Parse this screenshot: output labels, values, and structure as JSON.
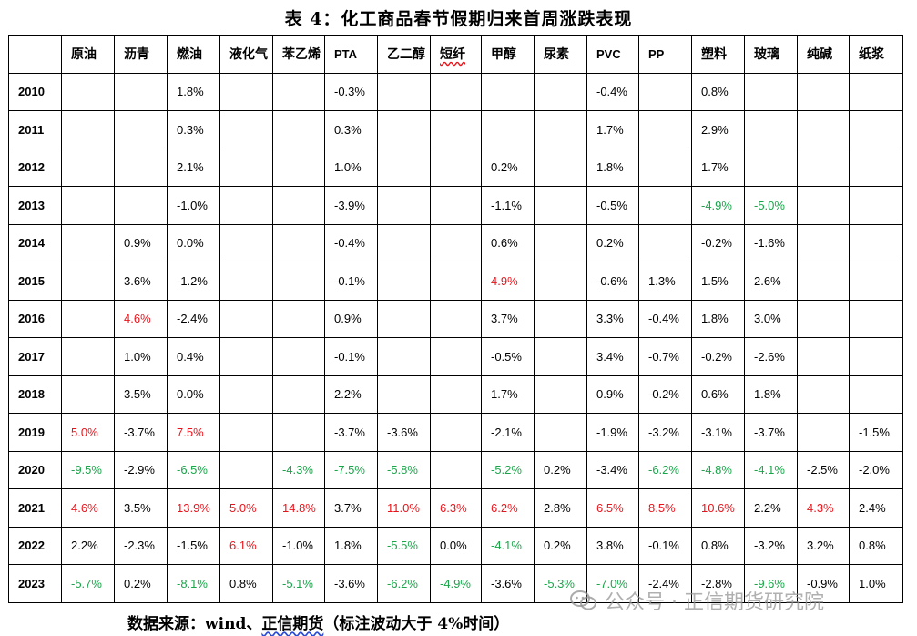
{
  "title": "表 4：化工商品春节假期归来首周涨跌表现",
  "colors": {
    "up": "#e8141b",
    "down": "#1aa54a",
    "text": "#000000"
  },
  "table": {
    "columns": [
      "",
      "原油",
      "沥青",
      "燃油",
      "液化气",
      "苯乙烯",
      "PTA",
      "乙二醇",
      "短纤",
      "甲醇",
      "尿素",
      "PVC",
      "PP",
      "塑料",
      "玻璃",
      "纯碱",
      "纸浆"
    ],
    "rows": [
      {
        "year": "2010",
        "cells": [
          {
            "v": "",
            "c": ""
          },
          {
            "v": "",
            "c": ""
          },
          {
            "v": "1.8%",
            "c": ""
          },
          {
            "v": "",
            "c": ""
          },
          {
            "v": "",
            "c": ""
          },
          {
            "v": "-0.3%",
            "c": ""
          },
          {
            "v": "",
            "c": ""
          },
          {
            "v": "",
            "c": ""
          },
          {
            "v": "",
            "c": ""
          },
          {
            "v": "",
            "c": ""
          },
          {
            "v": "-0.4%",
            "c": ""
          },
          {
            "v": "",
            "c": ""
          },
          {
            "v": "0.8%",
            "c": ""
          },
          {
            "v": "",
            "c": ""
          },
          {
            "v": "",
            "c": ""
          },
          {
            "v": "",
            "c": ""
          }
        ]
      },
      {
        "year": "2011",
        "cells": [
          {
            "v": "",
            "c": ""
          },
          {
            "v": "",
            "c": ""
          },
          {
            "v": "0.3%",
            "c": ""
          },
          {
            "v": "",
            "c": ""
          },
          {
            "v": "",
            "c": ""
          },
          {
            "v": "0.3%",
            "c": ""
          },
          {
            "v": "",
            "c": ""
          },
          {
            "v": "",
            "c": ""
          },
          {
            "v": "",
            "c": ""
          },
          {
            "v": "",
            "c": ""
          },
          {
            "v": "1.7%",
            "c": ""
          },
          {
            "v": "",
            "c": ""
          },
          {
            "v": "2.9%",
            "c": ""
          },
          {
            "v": "",
            "c": ""
          },
          {
            "v": "",
            "c": ""
          },
          {
            "v": "",
            "c": ""
          }
        ]
      },
      {
        "year": "2012",
        "cells": [
          {
            "v": "",
            "c": ""
          },
          {
            "v": "",
            "c": ""
          },
          {
            "v": "2.1%",
            "c": ""
          },
          {
            "v": "",
            "c": ""
          },
          {
            "v": "",
            "c": ""
          },
          {
            "v": "1.0%",
            "c": ""
          },
          {
            "v": "",
            "c": ""
          },
          {
            "v": "",
            "c": ""
          },
          {
            "v": "0.2%",
            "c": ""
          },
          {
            "v": "",
            "c": ""
          },
          {
            "v": "1.8%",
            "c": ""
          },
          {
            "v": "",
            "c": ""
          },
          {
            "v": "1.7%",
            "c": ""
          },
          {
            "v": "",
            "c": ""
          },
          {
            "v": "",
            "c": ""
          },
          {
            "v": "",
            "c": ""
          }
        ]
      },
      {
        "year": "2013",
        "cells": [
          {
            "v": "",
            "c": ""
          },
          {
            "v": "",
            "c": ""
          },
          {
            "v": "-1.0%",
            "c": ""
          },
          {
            "v": "",
            "c": ""
          },
          {
            "v": "",
            "c": ""
          },
          {
            "v": "-3.9%",
            "c": ""
          },
          {
            "v": "",
            "c": ""
          },
          {
            "v": "",
            "c": ""
          },
          {
            "v": "-1.1%",
            "c": ""
          },
          {
            "v": "",
            "c": ""
          },
          {
            "v": "-0.5%",
            "c": ""
          },
          {
            "v": "",
            "c": ""
          },
          {
            "v": "-4.9%",
            "c": "green"
          },
          {
            "v": "-5.0%",
            "c": "green"
          },
          {
            "v": "",
            "c": ""
          },
          {
            "v": "",
            "c": ""
          }
        ]
      },
      {
        "year": "2014",
        "cells": [
          {
            "v": "",
            "c": ""
          },
          {
            "v": "0.9%",
            "c": ""
          },
          {
            "v": "0.0%",
            "c": ""
          },
          {
            "v": "",
            "c": ""
          },
          {
            "v": "",
            "c": ""
          },
          {
            "v": "-0.4%",
            "c": ""
          },
          {
            "v": "",
            "c": ""
          },
          {
            "v": "",
            "c": ""
          },
          {
            "v": "0.6%",
            "c": ""
          },
          {
            "v": "",
            "c": ""
          },
          {
            "v": "0.2%",
            "c": ""
          },
          {
            "v": "",
            "c": ""
          },
          {
            "v": "-0.2%",
            "c": ""
          },
          {
            "v": "-1.6%",
            "c": ""
          },
          {
            "v": "",
            "c": ""
          },
          {
            "v": "",
            "c": ""
          }
        ]
      },
      {
        "year": "2015",
        "cells": [
          {
            "v": "",
            "c": ""
          },
          {
            "v": "3.6%",
            "c": ""
          },
          {
            "v": "-1.2%",
            "c": ""
          },
          {
            "v": "",
            "c": ""
          },
          {
            "v": "",
            "c": ""
          },
          {
            "v": "-0.1%",
            "c": ""
          },
          {
            "v": "",
            "c": ""
          },
          {
            "v": "",
            "c": ""
          },
          {
            "v": "4.9%",
            "c": "red"
          },
          {
            "v": "",
            "c": ""
          },
          {
            "v": "-0.6%",
            "c": ""
          },
          {
            "v": "1.3%",
            "c": ""
          },
          {
            "v": "1.5%",
            "c": ""
          },
          {
            "v": "2.6%",
            "c": ""
          },
          {
            "v": "",
            "c": ""
          },
          {
            "v": "",
            "c": ""
          }
        ]
      },
      {
        "year": "2016",
        "cells": [
          {
            "v": "",
            "c": ""
          },
          {
            "v": "4.6%",
            "c": "red"
          },
          {
            "v": "-2.4%",
            "c": ""
          },
          {
            "v": "",
            "c": ""
          },
          {
            "v": "",
            "c": ""
          },
          {
            "v": "0.9%",
            "c": ""
          },
          {
            "v": "",
            "c": ""
          },
          {
            "v": "",
            "c": ""
          },
          {
            "v": "3.7%",
            "c": ""
          },
          {
            "v": "",
            "c": ""
          },
          {
            "v": "3.3%",
            "c": ""
          },
          {
            "v": "-0.4%",
            "c": ""
          },
          {
            "v": "1.8%",
            "c": ""
          },
          {
            "v": "3.0%",
            "c": ""
          },
          {
            "v": "",
            "c": ""
          },
          {
            "v": "",
            "c": ""
          }
        ]
      },
      {
        "year": "2017",
        "cells": [
          {
            "v": "",
            "c": ""
          },
          {
            "v": "1.0%",
            "c": ""
          },
          {
            "v": "0.4%",
            "c": ""
          },
          {
            "v": "",
            "c": ""
          },
          {
            "v": "",
            "c": ""
          },
          {
            "v": "-0.1%",
            "c": ""
          },
          {
            "v": "",
            "c": ""
          },
          {
            "v": "",
            "c": ""
          },
          {
            "v": "-0.5%",
            "c": ""
          },
          {
            "v": "",
            "c": ""
          },
          {
            "v": "3.4%",
            "c": ""
          },
          {
            "v": "-0.7%",
            "c": ""
          },
          {
            "v": "-0.2%",
            "c": ""
          },
          {
            "v": "-2.6%",
            "c": ""
          },
          {
            "v": "",
            "c": ""
          },
          {
            "v": "",
            "c": ""
          }
        ]
      },
      {
        "year": "2018",
        "cells": [
          {
            "v": "",
            "c": ""
          },
          {
            "v": "3.5%",
            "c": ""
          },
          {
            "v": "0.0%",
            "c": ""
          },
          {
            "v": "",
            "c": ""
          },
          {
            "v": "",
            "c": ""
          },
          {
            "v": "2.2%",
            "c": ""
          },
          {
            "v": "",
            "c": ""
          },
          {
            "v": "",
            "c": ""
          },
          {
            "v": "1.7%",
            "c": ""
          },
          {
            "v": "",
            "c": ""
          },
          {
            "v": "0.9%",
            "c": ""
          },
          {
            "v": "-0.2%",
            "c": ""
          },
          {
            "v": "0.6%",
            "c": ""
          },
          {
            "v": "1.8%",
            "c": ""
          },
          {
            "v": "",
            "c": ""
          },
          {
            "v": "",
            "c": ""
          }
        ]
      },
      {
        "year": "2019",
        "cells": [
          {
            "v": "5.0%",
            "c": "red"
          },
          {
            "v": "-3.7%",
            "c": ""
          },
          {
            "v": "7.5%",
            "c": "red"
          },
          {
            "v": "",
            "c": ""
          },
          {
            "v": "",
            "c": ""
          },
          {
            "v": "-3.7%",
            "c": ""
          },
          {
            "v": "-3.6%",
            "c": ""
          },
          {
            "v": "",
            "c": ""
          },
          {
            "v": "-2.1%",
            "c": ""
          },
          {
            "v": "",
            "c": ""
          },
          {
            "v": "-1.9%",
            "c": ""
          },
          {
            "v": "-3.2%",
            "c": ""
          },
          {
            "v": "-3.1%",
            "c": ""
          },
          {
            "v": "-3.7%",
            "c": ""
          },
          {
            "v": "",
            "c": ""
          },
          {
            "v": "-1.5%",
            "c": ""
          }
        ]
      },
      {
        "year": "2020",
        "cells": [
          {
            "v": "-9.5%",
            "c": "green"
          },
          {
            "v": "-2.9%",
            "c": ""
          },
          {
            "v": "-6.5%",
            "c": "green"
          },
          {
            "v": "",
            "c": ""
          },
          {
            "v": "-4.3%",
            "c": "green"
          },
          {
            "v": "-7.5%",
            "c": "green"
          },
          {
            "v": "-5.8%",
            "c": "green"
          },
          {
            "v": "",
            "c": ""
          },
          {
            "v": "-5.2%",
            "c": "green"
          },
          {
            "v": "0.2%",
            "c": ""
          },
          {
            "v": "-3.4%",
            "c": ""
          },
          {
            "v": "-6.2%",
            "c": "green"
          },
          {
            "v": "-4.8%",
            "c": "green"
          },
          {
            "v": "-4.1%",
            "c": "green"
          },
          {
            "v": "-2.5%",
            "c": ""
          },
          {
            "v": "-2.0%",
            "c": ""
          }
        ]
      },
      {
        "year": "2021",
        "cells": [
          {
            "v": "4.6%",
            "c": "red"
          },
          {
            "v": "3.5%",
            "c": ""
          },
          {
            "v": "13.9%",
            "c": "red"
          },
          {
            "v": "5.0%",
            "c": "red"
          },
          {
            "v": "14.8%",
            "c": "red"
          },
          {
            "v": "3.7%",
            "c": ""
          },
          {
            "v": "11.0%",
            "c": "red"
          },
          {
            "v": "6.3%",
            "c": "red"
          },
          {
            "v": "6.2%",
            "c": "red"
          },
          {
            "v": "2.8%",
            "c": ""
          },
          {
            "v": "6.5%",
            "c": "red"
          },
          {
            "v": "8.5%",
            "c": "red"
          },
          {
            "v": "10.6%",
            "c": "red"
          },
          {
            "v": "2.2%",
            "c": ""
          },
          {
            "v": "4.3%",
            "c": "red"
          },
          {
            "v": "2.4%",
            "c": ""
          }
        ]
      },
      {
        "year": "2022",
        "cells": [
          {
            "v": "2.2%",
            "c": ""
          },
          {
            "v": "-2.3%",
            "c": ""
          },
          {
            "v": "-1.5%",
            "c": ""
          },
          {
            "v": "6.1%",
            "c": "red"
          },
          {
            "v": "-1.0%",
            "c": ""
          },
          {
            "v": "1.8%",
            "c": ""
          },
          {
            "v": "-5.5%",
            "c": "green"
          },
          {
            "v": "0.0%",
            "c": ""
          },
          {
            "v": "-4.1%",
            "c": "green"
          },
          {
            "v": "0.2%",
            "c": ""
          },
          {
            "v": "3.8%",
            "c": ""
          },
          {
            "v": "-0.1%",
            "c": ""
          },
          {
            "v": "0.8%",
            "c": ""
          },
          {
            "v": "-3.2%",
            "c": ""
          },
          {
            "v": "3.2%",
            "c": ""
          },
          {
            "v": "0.8%",
            "c": ""
          }
        ]
      },
      {
        "year": "2023",
        "cells": [
          {
            "v": "-5.7%",
            "c": "green"
          },
          {
            "v": "0.2%",
            "c": ""
          },
          {
            "v": "-8.1%",
            "c": "green"
          },
          {
            "v": "0.8%",
            "c": ""
          },
          {
            "v": "-5.1%",
            "c": "green"
          },
          {
            "v": "-3.6%",
            "c": ""
          },
          {
            "v": "-6.2%",
            "c": "green"
          },
          {
            "v": "-4.9%",
            "c": "green"
          },
          {
            "v": "-3.6%",
            "c": ""
          },
          {
            "v": "-5.3%",
            "c": "green"
          },
          {
            "v": "-7.0%",
            "c": "green"
          },
          {
            "v": "-2.4%",
            "c": ""
          },
          {
            "v": "-2.8%",
            "c": ""
          },
          {
            "v": "-9.6%",
            "c": "green"
          },
          {
            "v": "-0.9%",
            "c": ""
          },
          {
            "v": "1.0%",
            "c": ""
          }
        ]
      }
    ]
  },
  "footer": {
    "prefix": "数据来源：",
    "source1": "wind",
    "sep": "、",
    "source2": "正信期货",
    "note": "（标注波动大于 4%时间）"
  },
  "watermark": {
    "icon": "wechat-icon",
    "text": "公众号 · 正信期货研究院"
  }
}
